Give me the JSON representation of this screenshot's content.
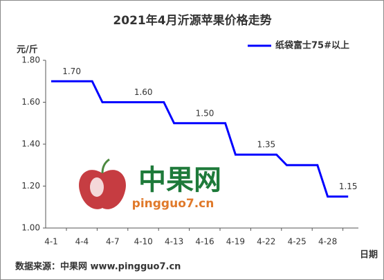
{
  "chart_data": {
    "type": "line",
    "title": "2021年4月沂源苹果价格走势",
    "y_unit": "元/斤",
    "x_label": "日期",
    "source": "数据来源：中果网 www.pingguo7.cn",
    "watermark": "中果网",
    "watermark_url": "pingguo7.cn",
    "categories": [
      "4-1",
      null,
      null,
      "4-4",
      null,
      null,
      "4-7",
      null,
      null,
      "4-10",
      null,
      null,
      "4-13",
      null,
      null,
      "4-16",
      null,
      null,
      "4-19",
      null,
      null,
      "4-22",
      null,
      null,
      "4-25",
      null,
      null,
      "4-28",
      null,
      null
    ],
    "series": [
      {
        "name": "纸袋富士75#以上",
        "color": "#0000ff",
        "values": [
          1.7,
          1.7,
          1.7,
          1.7,
          1.7,
          1.6,
          1.6,
          1.6,
          1.6,
          1.6,
          1.6,
          1.6,
          1.5,
          1.5,
          1.5,
          1.5,
          1.5,
          1.5,
          1.35,
          1.35,
          1.35,
          1.35,
          1.35,
          1.3,
          1.3,
          1.3,
          1.3,
          1.15,
          1.15,
          1.15
        ],
        "value_labels": [
          null,
          null,
          "1.70",
          null,
          null,
          null,
          null,
          null,
          null,
          "1.60",
          null,
          null,
          null,
          null,
          null,
          "1.50",
          null,
          null,
          null,
          null,
          null,
          "1.35",
          null,
          null,
          null,
          null,
          null,
          null,
          null,
          "1.15"
        ]
      }
    ],
    "ylim": [
      1.0,
      1.8
    ],
    "yticks": [
      {
        "value": 1.0,
        "label": "1.00"
      },
      {
        "value": 1.2,
        "label": "1.20"
      },
      {
        "value": 1.4,
        "label": "1.40"
      },
      {
        "value": 1.6,
        "label": "1.60"
      },
      {
        "value": 1.8,
        "label": "1.80"
      }
    ],
    "legend": "top-right"
  }
}
